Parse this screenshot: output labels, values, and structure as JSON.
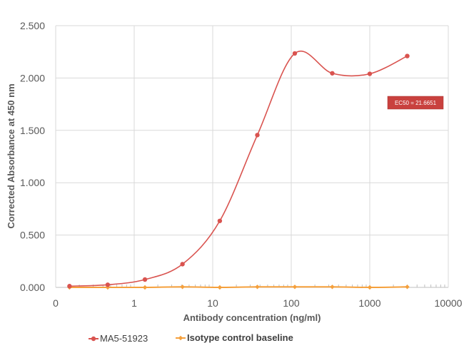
{
  "chart_data": {
    "type": "line",
    "xscale": "log",
    "xlabel": "Antibody concentration (ng/ml)",
    "ylabel": "Corrected Absorbance at 450 nm",
    "xlim": [
      0.1,
      10000
    ],
    "ylim": [
      0,
      2.5
    ],
    "x_tick_labels": [
      "0",
      "1",
      "10",
      "100",
      "1000",
      "10000"
    ],
    "y_tick_labels": [
      "0.000",
      "0.500",
      "1.000",
      "1.500",
      "2.000",
      "2.500"
    ],
    "grid": true,
    "legend_position": "bottom",
    "annotation": "EC50 = 21.6651",
    "series": [
      {
        "name": "MA5-51923",
        "color": "#D9534F",
        "marker": "circle",
        "x": [
          0.15,
          0.46,
          1.37,
          4.12,
          12.3,
          37,
          111,
          333,
          1000,
          3000
        ],
        "y": [
          0.012,
          0.025,
          0.075,
          0.222,
          0.635,
          1.455,
          2.235,
          2.045,
          2.04,
          2.21
        ]
      },
      {
        "name": "Isotype control baseline",
        "color": "#F5A03C",
        "marker": "diamond",
        "x": [
          0.15,
          0.46,
          1.37,
          4.12,
          12.3,
          37,
          111,
          333,
          1000,
          3000
        ],
        "y": [
          0.0,
          0.0,
          0.0,
          0.005,
          0.0,
          0.005,
          0.005,
          0.005,
          0.0,
          0.005
        ]
      }
    ]
  }
}
